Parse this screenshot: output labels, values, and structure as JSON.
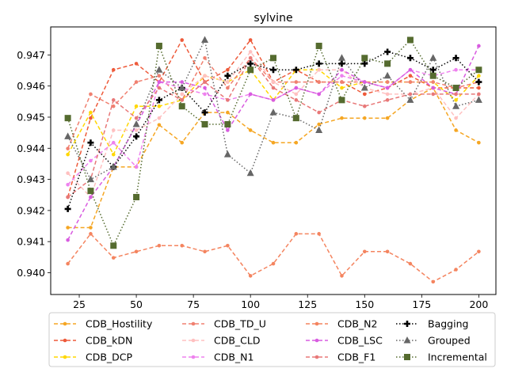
{
  "chart_data": {
    "type": "line",
    "title": "sylvine",
    "xlabel": "",
    "ylabel": "",
    "xlim": [
      12.5,
      207.5
    ],
    "ylim": [
      0.9393,
      0.9479
    ],
    "xticks": [
      25,
      50,
      75,
      100,
      125,
      150,
      175,
      200
    ],
    "yticks": [
      0.94,
      0.941,
      0.942,
      0.943,
      0.944,
      0.945,
      0.946,
      0.947
    ],
    "ytick_labels": [
      "0.940",
      "0.941",
      "0.942",
      "0.943",
      "0.944",
      "0.945",
      "0.946",
      "0.947"
    ],
    "grid": false,
    "legend_position": "bottom",
    "legend_columns": 4,
    "x": [
      20,
      30,
      40,
      50,
      60,
      70,
      80,
      90,
      100,
      110,
      120,
      130,
      140,
      150,
      160,
      170,
      180,
      190,
      200
    ],
    "series": [
      {
        "name": "CDB_Hostility",
        "color": "#f5a623",
        "dash": "5,3",
        "marker": "circle",
        "values": [
          0.94145,
          0.94145,
          0.9434,
          0.9434,
          0.94475,
          0.94418,
          0.94515,
          0.94515,
          0.94458,
          0.94418,
          0.94418,
          0.94477,
          0.94497,
          0.94497,
          0.94497,
          0.94555,
          0.94594,
          0.94458,
          0.94418
        ]
      },
      {
        "name": "CDB_kDN",
        "color": "#ee5a3a",
        "dash": "5,3",
        "marker": "circle",
        "values": [
          0.94243,
          0.94497,
          0.94652,
          0.94672,
          0.94613,
          0.94748,
          0.94613,
          0.94652,
          0.94748,
          0.94613,
          0.94652,
          0.94613,
          0.94613,
          0.94574,
          0.94594,
          0.94633,
          0.94594,
          0.94594,
          0.94594
        ]
      },
      {
        "name": "CDB_DCP",
        "color": "#ffd700",
        "dash": "5,3",
        "marker": "circle",
        "values": [
          0.9438,
          0.94515,
          0.9438,
          0.94535,
          0.94535,
          0.94555,
          0.94633,
          0.94613,
          0.94652,
          0.94555,
          0.94652,
          0.94652,
          0.94594,
          0.94613,
          0.94613,
          0.94613,
          0.94613,
          0.94555,
          0.94633
        ]
      },
      {
        "name": "CDB_TD_U",
        "color": "#f08070",
        "dash": "5,3",
        "marker": "circle",
        "values": [
          0.94399,
          0.94574,
          0.94535,
          0.94613,
          0.94633,
          0.94555,
          0.9469,
          0.94594,
          0.9469,
          0.94613,
          0.94613,
          0.94613,
          0.94613,
          0.94613,
          0.94613,
          0.94613,
          0.94613,
          0.94594,
          0.94613
        ]
      },
      {
        "name": "CDB_CLD",
        "color": "#ffc0c0",
        "dash": "5,3",
        "marker": "circle",
        "values": [
          0.9432,
          0.94243,
          0.94458,
          0.94458,
          0.94497,
          0.94574,
          0.94633,
          0.94613,
          0.9471,
          0.94613,
          0.94574,
          0.94652,
          0.94652,
          0.94594,
          0.94574,
          0.94574,
          0.94594,
          0.94497,
          0.94574
        ]
      },
      {
        "name": "CDB_N1",
        "color": "#ee82ee",
        "dash": "5,3",
        "marker": "circle",
        "values": [
          0.94283,
          0.9436,
          0.94418,
          0.9434,
          0.94613,
          0.94594,
          0.94574,
          0.94555,
          0.94574,
          0.94555,
          0.94594,
          0.94574,
          0.94633,
          0.94613,
          0.94594,
          0.94652,
          0.94633,
          0.94652,
          0.94652
        ]
      },
      {
        "name": "CDB_N2",
        "color": "#f4845f",
        "dash": "5,3",
        "marker": "circle",
        "values": [
          0.94029,
          0.94125,
          0.94048,
          0.94068,
          0.94087,
          0.94087,
          0.94068,
          0.94087,
          0.9399,
          0.94029,
          0.94125,
          0.94125,
          0.9399,
          0.94068,
          0.94068,
          0.94029,
          0.93971,
          0.9401,
          0.94068
        ]
      },
      {
        "name": "CDB_LSC",
        "color": "#d85ce0",
        "dash": "5,3",
        "marker": "circle",
        "values": [
          0.94105,
          0.94243,
          0.9434,
          0.94475,
          0.94613,
          0.94613,
          0.94594,
          0.94458,
          0.94574,
          0.94555,
          0.94594,
          0.94574,
          0.94652,
          0.94613,
          0.94594,
          0.94652,
          0.94594,
          0.94574,
          0.94729
        ]
      },
      {
        "name": "CDB_F1",
        "color": "#e87878",
        "dash": "5,3",
        "marker": "circle",
        "values": [
          0.94243,
          0.943,
          0.94555,
          0.94497,
          0.94594,
          0.94555,
          0.94613,
          0.94555,
          0.9469,
          0.94594,
          0.94555,
          0.94515,
          0.94555,
          0.94535,
          0.94555,
          0.94574,
          0.94574,
          0.94574,
          0.94574
        ]
      },
      {
        "name": "Bagging",
        "color": "#000000",
        "dash": "1.5,2.5",
        "marker": "plus",
        "values": [
          0.94205,
          0.94418,
          0.9434,
          0.94438,
          0.94555,
          0.94594,
          0.94515,
          0.94633,
          0.94672,
          0.94652,
          0.94652,
          0.94672,
          0.94672,
          0.94672,
          0.9471,
          0.9469,
          0.94652,
          0.9469,
          0.94613
        ]
      },
      {
        "name": "Grouped",
        "color": "#666666",
        "dash": "1.5,2.5",
        "marker": "triangle",
        "values": [
          0.94438,
          0.943,
          0.9434,
          0.94477,
          0.94652,
          0.94594,
          0.94748,
          0.9438,
          0.9432,
          0.94515,
          0.94497,
          0.94458,
          0.9469,
          0.94594,
          0.94633,
          0.94555,
          0.9469,
          0.94535,
          0.94555
        ]
      },
      {
        "name": "Incremental",
        "color": "#556b2f",
        "dash": "1.5,2.5",
        "marker": "square",
        "values": [
          0.94497,
          0.94263,
          0.94087,
          0.94243,
          0.94729,
          0.94535,
          0.94477,
          0.94477,
          0.94652,
          0.9469,
          0.94497,
          0.94729,
          0.94555,
          0.9469,
          0.94672,
          0.94748,
          0.94633,
          0.94594,
          0.94652
        ]
      }
    ]
  }
}
